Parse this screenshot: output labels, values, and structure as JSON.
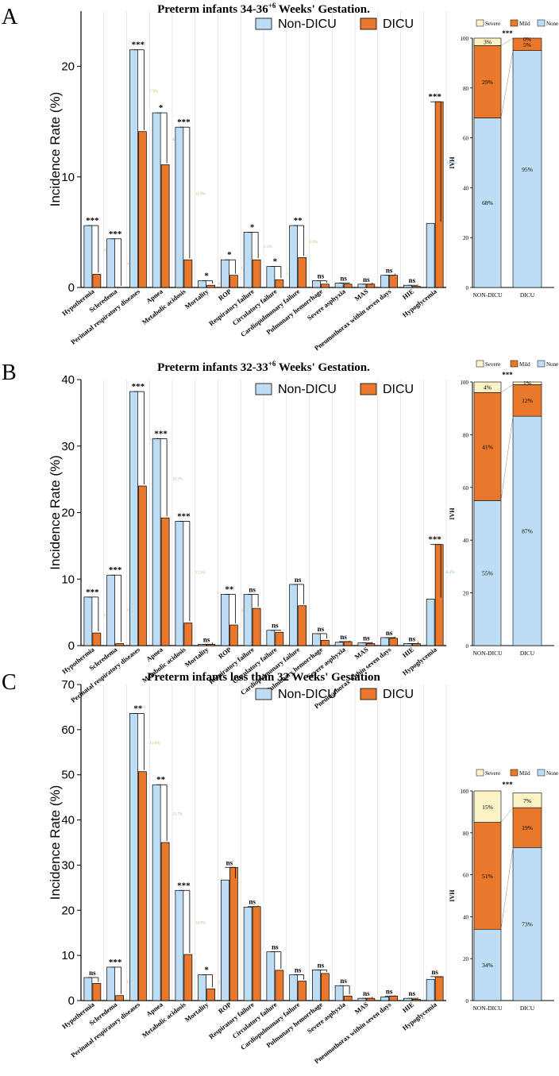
{
  "colors": {
    "non_dicu": "#BDDDF4",
    "dicu": "#E9772C",
    "severe": "#FBF3C6",
    "mild": "#E9772C",
    "none": "#BDDDF4",
    "axis": "#000000",
    "grid": "#D9D9D9",
    "pct_orange": "#E8A060",
    "pct_blue": "#6EB5E8"
  },
  "figure": {
    "categories": [
      "Hypothermia",
      "Scleredema",
      "Perinatal respiratory diseases",
      "Apnea",
      "Metabolic acidosis",
      "Mortality",
      "ROP",
      "Respiratory failure",
      "Circulatory failure",
      "Cardiopulmonary failure",
      "Pulmonary hemorrhage",
      "Severe asphyxia",
      "MAS",
      "Pneumothorax within seven days",
      "HIE",
      "Hypoglycemia"
    ],
    "legend": [
      "Non-DICU",
      "DICU"
    ],
    "ylabel": "Incidence Rate (%)",
    "side_ylabel": "IVH",
    "side_categories": [
      "NON-DICU",
      "DICU"
    ],
    "side_legend": [
      "Severe",
      "Mild",
      "None"
    ]
  },
  "chart_data": [
    {
      "type": "bar",
      "panel": "A",
      "title_main": "Preterm infants 34-36",
      "title_sup": "+6",
      "title_tail": " Weeks' Gestation.",
      "ylim": [
        0,
        25
      ],
      "yticks": [
        "0",
        "10",
        "20"
      ],
      "series": [
        {
          "name": "Non-DICU",
          "values": [
            5.6,
            4.4,
            21.5,
            15.8,
            14.5,
            0.6,
            2.5,
            5.0,
            1.9,
            5.6,
            0.6,
            0.4,
            0.3,
            1.1,
            0.2,
            5.8
          ]
        },
        {
          "name": "DICU",
          "values": [
            1.2,
            0.0,
            14.1,
            11.1,
            2.5,
            0.2,
            1.1,
            2.5,
            0.7,
            2.7,
            0.3,
            0.3,
            0.3,
            1.1,
            0.1,
            16.8
          ]
        }
      ],
      "significance": [
        "***",
        "***",
        "***",
        "*",
        "***",
        "*",
        "*",
        "*",
        "*",
        "**",
        "ns",
        "ns",
        "ns",
        "ns",
        "ns",
        "***"
      ],
      "reductions": [
        "4.4%",
        "4.4%",
        "7.3%",
        "4.7%",
        "11.9%",
        "0.4%",
        "1.4%",
        "2.5%",
        "1.2%",
        "2.9%",
        "",
        "",
        "",
        "",
        "",
        "10.9%"
      ],
      "stacked": {
        "type": "stacked_bar",
        "ylim": [
          0,
          100
        ],
        "yticks": [
          "0",
          "20",
          "40",
          "60",
          "80",
          "100"
        ],
        "significance": "***",
        "none": [
          68,
          95
        ],
        "mild": [
          29,
          5
        ],
        "severe": [
          3,
          0
        ],
        "labels_none": [
          "68%",
          "95%"
        ],
        "labels_mild": [
          "29%",
          "5%"
        ],
        "labels_severe": [
          "3%",
          "0%"
        ]
      }
    },
    {
      "type": "bar",
      "panel": "B",
      "title_main": "Preterm infants 32-33",
      "title_sup": "+6",
      "title_tail": " Weeks' Gestation.",
      "ylim": [
        0,
        40
      ],
      "yticks": [
        "0",
        "10",
        "20",
        "30",
        "40"
      ],
      "series": [
        {
          "name": "Non-DICU",
          "values": [
            7.3,
            10.6,
            38.2,
            31.1,
            18.7,
            0.2,
            7.7,
            7.7,
            2.3,
            9.2,
            1.8,
            0.5,
            0.4,
            1.2,
            0.3,
            7.0
          ]
        },
        {
          "name": "DICU",
          "values": [
            1.9,
            0.3,
            24.0,
            19.2,
            3.4,
            0.2,
            3.1,
            5.6,
            2.0,
            6.0,
            0.8,
            0.6,
            0.3,
            1.1,
            0.3,
            15.2
          ]
        }
      ],
      "significance": [
        "***",
        "***",
        "***",
        "***",
        "***",
        "ns",
        "**",
        "ns",
        "ns",
        "ns",
        "ns",
        "ns",
        "ns",
        "ns",
        "ns",
        "***"
      ],
      "reductions": [
        "5.5%",
        "10.3%",
        "14.2%",
        "11.9%",
        "15.3%",
        "",
        "4.7%",
        "",
        "",
        "",
        "",
        "",
        "",
        "",
        "",
        "8.2%"
      ],
      "stacked": {
        "type": "stacked_bar",
        "ylim": [
          0,
          100
        ],
        "yticks": [
          "0",
          "20",
          "40",
          "60",
          "80",
          "100"
        ],
        "significance": "***",
        "none": [
          55,
          87
        ],
        "mild": [
          41,
          12
        ],
        "severe": [
          4,
          1
        ],
        "labels_none": [
          "55%",
          "87%"
        ],
        "labels_mild": [
          "41%",
          "12%"
        ],
        "labels_severe": [
          "4%",
          "1%"
        ]
      }
    },
    {
      "type": "bar",
      "panel": "C",
      "title_main": "Preterm infants less than 32 Weeks' Gestation",
      "title_sup": "",
      "title_tail": "",
      "ylim": [
        0,
        70
      ],
      "yticks": [
        "0",
        "10",
        "20",
        "30",
        "40",
        "50",
        "60",
        "70"
      ],
      "series": [
        {
          "name": "Non-DICU",
          "values": [
            5.1,
            7.4,
            63.6,
            47.8,
            24.4,
            5.7,
            26.7,
            20.7,
            10.8,
            5.7,
            6.8,
            3.3,
            0.5,
            0.8,
            0.5,
            4.7
          ]
        },
        {
          "name": "DICU",
          "values": [
            3.8,
            1.1,
            50.7,
            35.0,
            10.2,
            2.6,
            29.5,
            20.8,
            6.7,
            4.3,
            6.0,
            1.0,
            0.5,
            1.0,
            0.3,
            5.3
          ]
        }
      ],
      "significance": [
        "ns",
        "***",
        "**",
        "**",
        "***",
        "*",
        "ns",
        "ns",
        "ns",
        "ns",
        "ns",
        "ns",
        "ns",
        "ns",
        "ns",
        "ns"
      ],
      "reductions": [
        "",
        "6.3%",
        "13.0%",
        "12.7%",
        "14.3%",
        "3.1%",
        "",
        "",
        "",
        "",
        "",
        "",
        "",
        "",
        "",
        ""
      ],
      "stacked": {
        "type": "stacked_bar",
        "ylim": [
          0,
          100
        ],
        "yticks": [
          "0",
          "20",
          "40",
          "60",
          "80",
          "100"
        ],
        "significance": "***",
        "none": [
          34,
          73
        ],
        "mild": [
          51,
          19
        ],
        "severe": [
          15,
          7
        ],
        "labels_none": [
          "34%",
          "73%"
        ],
        "labels_mild": [
          "51%",
          "19%"
        ],
        "labels_severe": [
          "15%",
          "7%"
        ]
      }
    }
  ]
}
